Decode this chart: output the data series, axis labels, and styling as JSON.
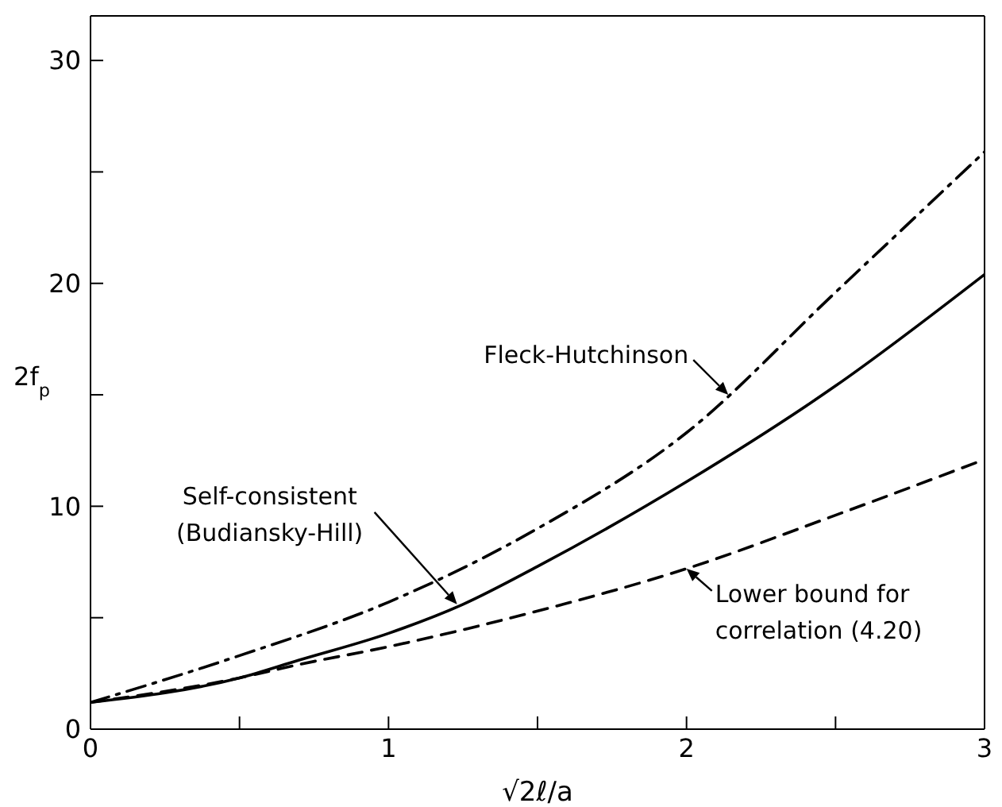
{
  "chart_data": {
    "type": "line",
    "xlabel": "√2ℓ/a",
    "ylabel": "2f$_{p}$",
    "xlim": [
      0,
      3
    ],
    "xticks": [
      0,
      {
        "value": 0.5,
        "label": null
      },
      1,
      {
        "value": 1.5,
        "label": null
      },
      2,
      {
        "value": 2.5,
        "label": null
      },
      3
    ],
    "ylim": [
      0,
      32
    ],
    "yticks": [
      0,
      {
        "value": 5,
        "label": null
      },
      10,
      {
        "value": 15,
        "label": null
      },
      20,
      {
        "value": 25,
        "label": null
      },
      30
    ],
    "grid": false,
    "marker": "none",
    "series": [
      {
        "color": "#000000",
        "line_style": "dashdot",
        "x": [
          0,
          0.5,
          1,
          1.5,
          2,
          2.5,
          3
        ],
        "values": [
          1.2,
          3.3,
          5.7,
          9.0,
          13.3,
          19.6,
          25.9
        ]
      },
      {
        "color": "#000000",
        "line_style": "solid",
        "x": [
          0,
          0.5,
          0.7,
          1,
          1.25,
          1.5,
          2,
          2.5,
          3
        ],
        "values": [
          1.2,
          2.3,
          3.1,
          4.3,
          5.6,
          7.3,
          11.1,
          15.4,
          20.4
        ]
      },
      {
        "color": "#000000",
        "line_style": "dashed",
        "x": [
          0,
          0.5,
          0.7,
          1,
          1.5,
          2,
          2.5,
          3
        ],
        "values": [
          1.2,
          2.3,
          2.9,
          3.7,
          5.3,
          7.2,
          9.6,
          12.1
        ]
      }
    ],
    "annotations": [
      {
        "text": "Fleck-Hutchinson",
        "x": 2.14,
        "y": 15.0
      },
      {
        "text": "Self-consistent\n(Budiansky-Hill)",
        "x": 1.23,
        "y": 5.6
      },
      {
        "text": "Lower bound for\ncorrelation (4.20)",
        "x": 2.0,
        "y": 7.2
      }
    ]
  }
}
